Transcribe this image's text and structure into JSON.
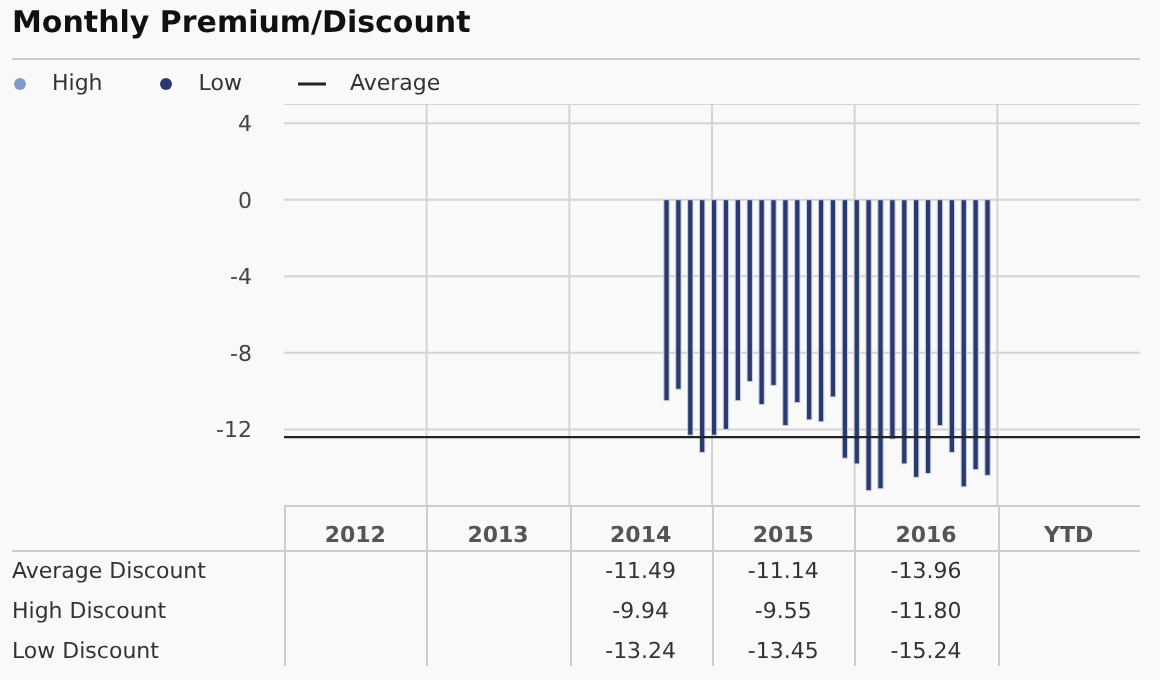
{
  "chart_data": {
    "type": "bar",
    "title": "Monthly Premium/Discount",
    "x": [
      "2014-09",
      "2014-10",
      "2014-11",
      "2014-12",
      "2015-01",
      "2015-02",
      "2015-03",
      "2015-04",
      "2015-05",
      "2015-06",
      "2015-07",
      "2015-08",
      "2015-09",
      "2015-10",
      "2015-11",
      "2015-12",
      "2016-01",
      "2016-02",
      "2016-03",
      "2016-04",
      "2016-05",
      "2016-06",
      "2016-07",
      "2016-08",
      "2016-09",
      "2016-10",
      "2016-11",
      "2016-12"
    ],
    "series": [
      {
        "name": "High",
        "color": "#7f9bc8",
        "values": [
          null,
          null,
          null,
          null,
          null,
          null,
          null,
          null,
          null,
          null,
          null,
          null,
          null,
          null,
          null,
          null,
          null,
          null,
          null,
          null,
          null,
          null,
          null,
          null,
          null,
          null,
          null,
          null
        ]
      },
      {
        "name": "Low",
        "color": "#2b3a6e",
        "values": [
          -10.5,
          -9.9,
          -12.3,
          -13.2,
          -12.3,
          -12.0,
          -10.5,
          -9.5,
          -10.7,
          -9.7,
          -11.8,
          -10.6,
          -11.5,
          -11.6,
          -10.3,
          -13.5,
          -13.8,
          -15.2,
          -15.1,
          -12.5,
          -13.8,
          -14.5,
          -14.3,
          -11.8,
          -13.2,
          -15.0,
          -14.1,
          -14.4
        ]
      }
    ],
    "ref_lines": [
      {
        "axis": "y",
        "value": -12.4,
        "label": "Average",
        "color": "#222222",
        "line_style": "solid"
      }
    ],
    "xlim": [
      "2012-01",
      "2018-01"
    ],
    "xticks": [
      {
        "value": "2012-07",
        "label": "2012"
      },
      {
        "value": "2013-01",
        "label": null
      },
      {
        "value": "2013-07",
        "label": "2013"
      },
      {
        "value": "2014-01",
        "label": null
      },
      {
        "value": "2014-07",
        "label": "2014"
      },
      {
        "value": "2015-01",
        "label": null
      },
      {
        "value": "2015-07",
        "label": "2015"
      },
      {
        "value": "2016-01",
        "label": null
      },
      {
        "value": "2016-07",
        "label": "2016"
      },
      {
        "value": "2017-01",
        "label": null
      },
      {
        "value": "2017-07",
        "label": "YTD"
      }
    ],
    "ylim": [
      -16,
      5
    ],
    "yticks": [
      4,
      0,
      -4,
      -8,
      -12
    ],
    "grid": true,
    "legend": "top left",
    "annotations": [
      "Average Discount",
      "-11.49",
      "-11.14",
      "-13.96",
      "High Discount",
      "-9.94",
      "-9.55",
      "-11.80",
      "Low Discount",
      "-13.24",
      "-13.45",
      "-15.24"
    ]
  }
}
